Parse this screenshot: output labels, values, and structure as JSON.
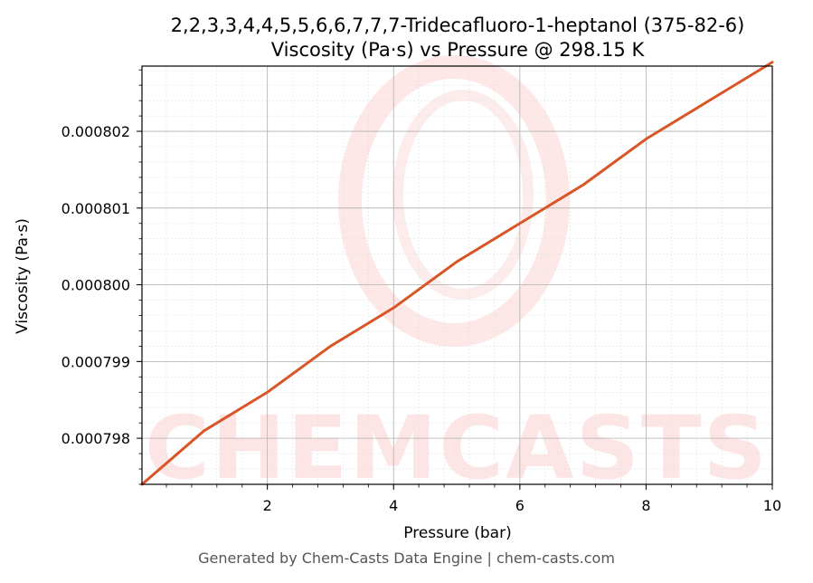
{
  "chart_data": {
    "type": "line",
    "title": "2,2,3,3,4,4,5,5,6,6,7,7,7-Tridecafluoro-1-heptanol (375-82-6)",
    "subtitle": "Viscosity (Pa·s) vs Pressure @ 298.15 K",
    "xlabel": "Pressure (bar)",
    "ylabel": "Viscosity (Pa·s)",
    "xlim": [
      0.01325,
      10
    ],
    "ylim": [
      0.0007974,
      0.00080285
    ],
    "x_ticks": [
      2,
      4,
      6,
      8,
      10
    ],
    "y_ticks": [
      0.000798,
      0.000799,
      0.0008,
      0.000801,
      0.000802
    ],
    "y_tick_labels": [
      "0.000798",
      "0.000799",
      "0.000800",
      "0.000801",
      "0.000802"
    ],
    "grid": true,
    "minor_grid": true,
    "series": [
      {
        "color": "#d95525",
        "x": [
          0.01325,
          1,
          2,
          3,
          4,
          5,
          6,
          7,
          8,
          9,
          10
        ],
        "y": [
          0.0007974,
          0.0007981,
          0.0007986,
          0.0007992,
          0.0007997,
          0.0008003,
          0.0008008,
          0.0008013,
          0.0008019,
          0.0008024,
          0.0008029
        ]
      }
    ]
  },
  "watermark": "CHEMCASTS",
  "footer": "Generated by Chem-Casts Data Engine | chem-casts.com"
}
